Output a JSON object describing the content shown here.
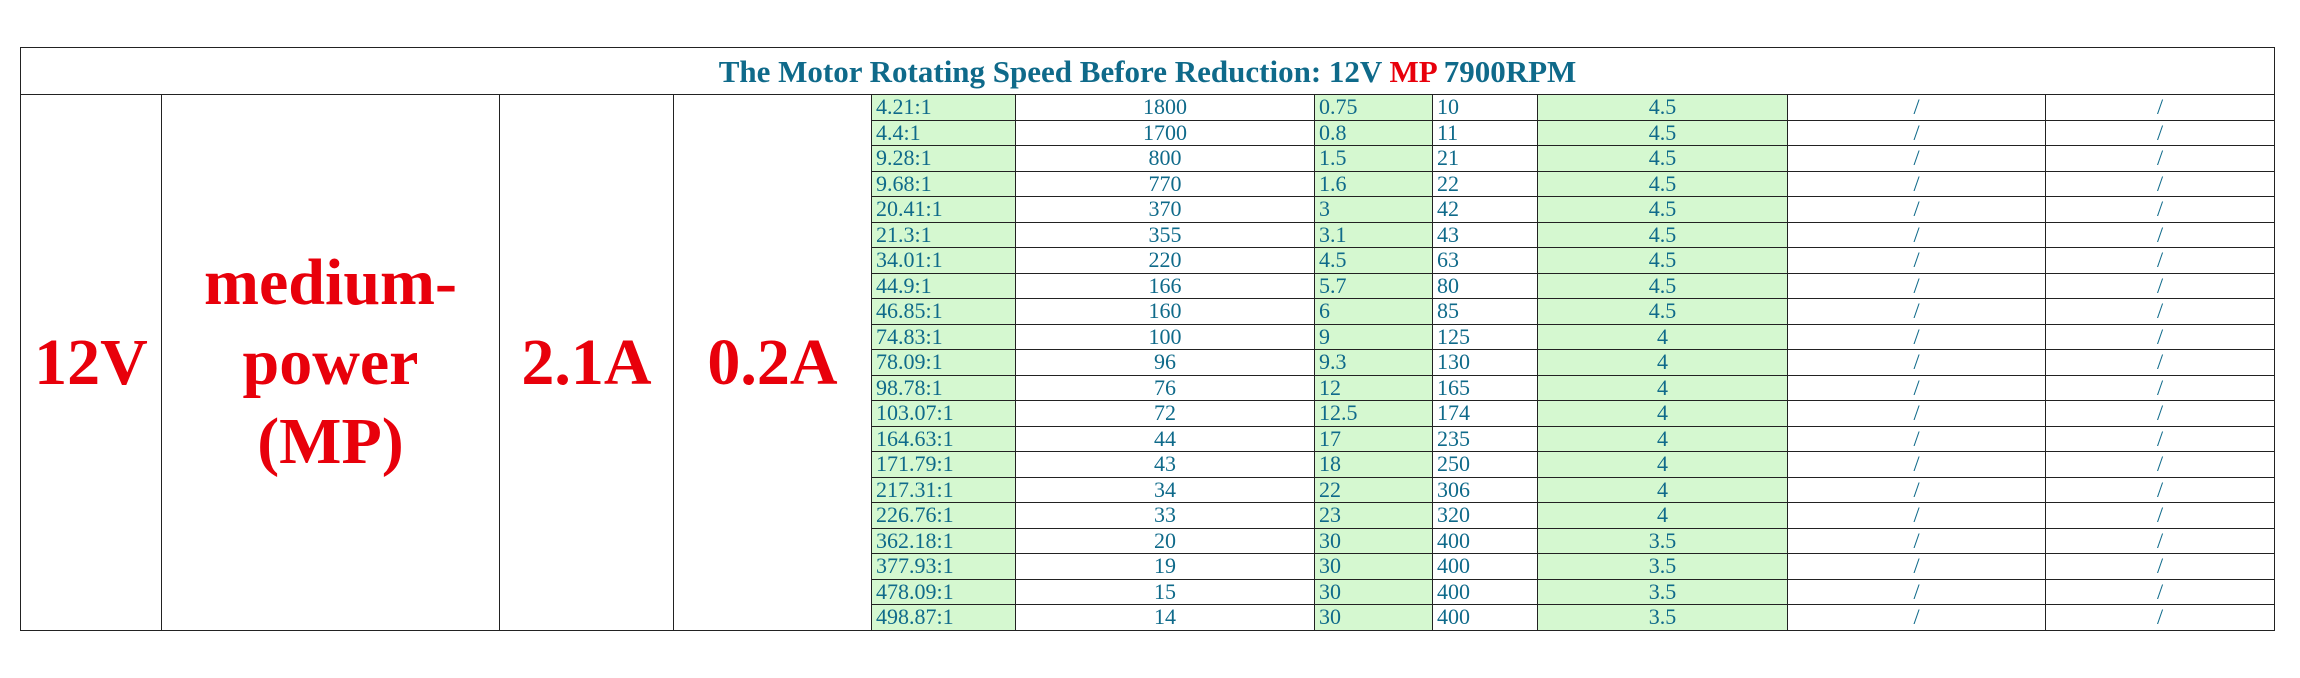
{
  "table": {
    "title_prefix": "The Motor Rotating Speed Before Reduction: 12V ",
    "title_highlight": "MP",
    "title_suffix": " 7900RPM",
    "left": [
      "12V",
      "medium-power (MP)",
      "2.1A",
      "0.2A"
    ],
    "rows": [
      [
        "4.21:1",
        "1800",
        "0.75",
        "10",
        "4.5",
        "/",
        "/"
      ],
      [
        "4.4:1",
        "1700",
        "0.8",
        "11",
        "4.5",
        "/",
        "/"
      ],
      [
        "9.28:1",
        "800",
        "1.5",
        "21",
        "4.5",
        "/",
        "/"
      ],
      [
        "9.68:1",
        "770",
        "1.6",
        "22",
        "4.5",
        "/",
        "/"
      ],
      [
        "20.41:1",
        "370",
        "3",
        "42",
        "4.5",
        "/",
        "/"
      ],
      [
        "21.3:1",
        "355",
        "3.1",
        "43",
        "4.5",
        "/",
        "/"
      ],
      [
        "34.01:1",
        "220",
        "4.5",
        "63",
        "4.5",
        "/",
        "/"
      ],
      [
        "44.9:1",
        "166",
        "5.7",
        "80",
        "4.5",
        "/",
        "/"
      ],
      [
        "46.85:1",
        "160",
        "6",
        "85",
        "4.5",
        "/",
        "/"
      ],
      [
        "74.83:1",
        "100",
        "9",
        "125",
        "4",
        "/",
        "/"
      ],
      [
        "78.09:1",
        "96",
        "9.3",
        "130",
        "4",
        "/",
        "/"
      ],
      [
        "98.78:1",
        "76",
        "12",
        "165",
        "4",
        "/",
        "/"
      ],
      [
        "103.07:1",
        "72",
        "12.5",
        "174",
        "4",
        "/",
        "/"
      ],
      [
        "164.63:1",
        "44",
        "17",
        "235",
        "4",
        "/",
        "/"
      ],
      [
        "171.79:1",
        "43",
        "18",
        "250",
        "4",
        "/",
        "/"
      ],
      [
        "217.31:1",
        "34",
        "22",
        "306",
        "4",
        "/",
        "/"
      ],
      [
        "226.76:1",
        "33",
        "23",
        "320",
        "4",
        "/",
        "/"
      ],
      [
        "362.18:1",
        "20",
        "30",
        "400",
        "3.5",
        "/",
        "/"
      ],
      [
        "377.93:1",
        "19",
        "30",
        "400",
        "3.5",
        "/",
        "/"
      ],
      [
        "478.09:1",
        "15",
        "30",
        "400",
        "3.5",
        "/",
        "/"
      ],
      [
        "498.87:1",
        "14",
        "30",
        "400",
        "3.5",
        "/",
        "/"
      ]
    ]
  }
}
